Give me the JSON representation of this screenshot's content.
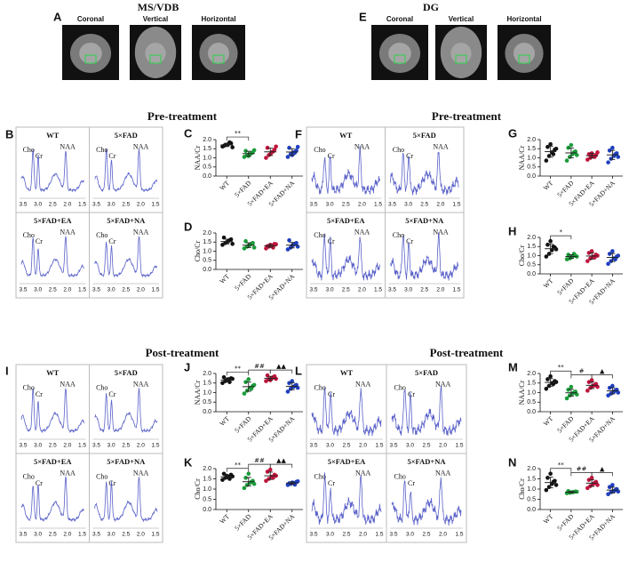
{
  "mri": [
    {
      "letter": "A",
      "title": "MS/VDB",
      "views": [
        "Coronal",
        "Vertical",
        "Horizontal"
      ]
    },
    {
      "letter": "E",
      "title": "DG",
      "views": [
        "Coronal",
        "Vertical",
        "Horizontal"
      ]
    }
  ],
  "sections": [
    "Pre-treatment",
    "Pre-treatment",
    "Post-treatment",
    "Post-treatment"
  ],
  "spectra": [
    {
      "letter": "B",
      "axis": [
        "3.5",
        "3.0",
        "2.5",
        "2.0",
        "1.5"
      ],
      "cells": [
        {
          "group": "WT",
          "peaks": [
            "Cho",
            "Cr",
            "NAA"
          ]
        },
        {
          "group": "5×FAD",
          "peaks": [
            "Cho",
            "Cr",
            "NAA"
          ]
        },
        {
          "group": "5×FAD+EA",
          "peaks": [
            "Cho",
            "Cr",
            "NAA"
          ]
        },
        {
          "group": "5×FAD+NA",
          "peaks": [
            "Cho",
            "Cr",
            "NAA"
          ]
        }
      ]
    },
    {
      "letter": "F",
      "axis": [
        "3.5",
        "3.0",
        "2.5",
        "2.0",
        "1.5"
      ],
      "cells": [
        {
          "group": "WT",
          "peaks": [
            "Cho",
            "Cr",
            "NAA"
          ]
        },
        {
          "group": "5×FAD",
          "peaks": [
            "Cho",
            "Cr",
            "NAA"
          ]
        },
        {
          "group": "5×FAD+EA",
          "peaks": [
            "Cho",
            "Cr",
            "NAA"
          ]
        },
        {
          "group": "5×FAD+NA",
          "peaks": [
            "Cho",
            "Cr",
            "NAA"
          ]
        }
      ]
    },
    {
      "letter": "I",
      "axis": [
        "3.5",
        "3.0",
        "2.5",
        "2.0",
        "1.5"
      ],
      "cells": [
        {
          "group": "WT",
          "peaks": [
            "Cho",
            "Cr",
            "NAA"
          ]
        },
        {
          "group": "5×FAD",
          "peaks": [
            "Cho",
            "Cr",
            "NAA"
          ]
        },
        {
          "group": "5×FAD+EA",
          "peaks": [
            "Cho",
            "Cr",
            "NAA"
          ]
        },
        {
          "group": "5×FAD+NA",
          "peaks": [
            "Cho",
            "Cr",
            "NAA"
          ]
        }
      ]
    },
    {
      "letter": "L",
      "axis": [
        "3.5",
        "3.0",
        "2.5",
        "2.0",
        "1.5"
      ],
      "cells": [
        {
          "group": "WT",
          "peaks": [
            "Cho",
            "Cr",
            "NAA"
          ]
        },
        {
          "group": "5×FAD",
          "peaks": [
            "Cho",
            "Cr",
            "NAA"
          ]
        },
        {
          "group": "5×FAD+EA",
          "peaks": [
            "Cho",
            "Cr",
            "NAA"
          ]
        },
        {
          "group": "5×FAD+NA",
          "peaks": [
            "Cho",
            "Cr",
            "NAA"
          ]
        }
      ]
    }
  ],
  "chart_data": [
    {
      "type": "strip",
      "letter": "C",
      "ylabel": "NAA/Cr",
      "categories": [
        "WT",
        "5×FAD",
        "5×FAD+EA",
        "5×FAD+NA"
      ],
      "colors": [
        "#111111",
        "#1a9c3a",
        "#c0143c",
        "#1f3fbf"
      ],
      "points": [
        [
          1.62,
          1.7,
          1.75,
          1.8,
          1.66,
          1.72,
          1.85,
          1.58
        ],
        [
          1.05,
          1.15,
          1.22,
          1.3,
          1.38,
          1.1,
          1.25,
          1.42
        ],
        [
          1.0,
          1.15,
          1.3,
          1.45,
          1.55,
          1.2,
          1.35,
          1.62
        ],
        [
          1.05,
          1.2,
          1.3,
          1.4,
          1.55,
          1.15,
          1.28,
          1.6
        ]
      ],
      "mean": [
        1.71,
        1.23,
        1.33,
        1.32
      ],
      "sd": [
        0.09,
        0.13,
        0.2,
        0.18
      ],
      "ylim": [
        0,
        2
      ],
      "yticks": [
        {
          "value": 0,
          "label": "0.0"
        },
        {
          "value": 0.5,
          "label": "0.5"
        },
        {
          "value": 1,
          "label": "1.0"
        },
        {
          "value": 1.5,
          "label": "1.5"
        },
        {
          "value": 2,
          "label": "2.0"
        }
      ],
      "significance": [
        "**"
      ]
    },
    {
      "type": "strip",
      "letter": "D",
      "ylabel": "Cho/Cr",
      "categories": [
        "WT",
        "5×FAD",
        "5×FAD+EA",
        "5×FAD+NA"
      ],
      "colors": [
        "#111111",
        "#1a9c3a",
        "#c0143c",
        "#1f3fbf"
      ],
      "points": [
        [
          1.35,
          1.45,
          1.55,
          1.65,
          1.75,
          1.5,
          1.6,
          1.4
        ],
        [
          1.15,
          1.25,
          1.35,
          1.45,
          1.55,
          1.3,
          1.4,
          1.2
        ],
        [
          1.15,
          1.25,
          1.32,
          1.4,
          1.28,
          1.35,
          1.2,
          1.38
        ],
        [
          1.1,
          1.2,
          1.35,
          1.45,
          1.6,
          1.3,
          1.4,
          1.25
        ]
      ],
      "mean": [
        1.53,
        1.33,
        1.29,
        1.33
      ],
      "sd": [
        0.13,
        0.13,
        0.08,
        0.15
      ],
      "ylim": [
        0,
        2
      ],
      "yticks": [
        {
          "value": 0,
          "label": "0.0"
        },
        {
          "value": 0.5,
          "label": "0.5"
        },
        {
          "value": 1,
          "label": "1.0"
        },
        {
          "value": 1.5,
          "label": "1.5"
        },
        {
          "value": 2,
          "label": "2.0"
        }
      ],
      "significance": []
    },
    {
      "type": "strip",
      "letter": "G",
      "ylabel": "NAA/Cr",
      "categories": [
        "WT",
        "5×FAD",
        "5×FAD+EA",
        "5×FAD+NA"
      ],
      "colors": [
        "#111111",
        "#1a9c3a",
        "#c0143c",
        "#1f3fbf"
      ],
      "points": [
        [
          0.85,
          1.1,
          1.3,
          1.45,
          1.6,
          1.75,
          1.2,
          1.5
        ],
        [
          0.85,
          1.05,
          1.2,
          1.35,
          1.55,
          1.7,
          1.3,
          1.15
        ],
        [
          0.9,
          1.0,
          1.1,
          1.15,
          1.2,
          1.25,
          1.05,
          1.3
        ],
        [
          0.75,
          0.95,
          1.1,
          1.25,
          1.4,
          1.55,
          1.2,
          1.05
        ]
      ],
      "mean": [
        1.34,
        1.27,
        1.12,
        1.16
      ],
      "sd": [
        0.3,
        0.27,
        0.13,
        0.25
      ],
      "ylim": [
        0,
        2
      ],
      "yticks": [
        {
          "value": 0,
          "label": "0.0"
        },
        {
          "value": 0.5,
          "label": "0.5"
        },
        {
          "value": 1,
          "label": "1.0"
        },
        {
          "value": 1.5,
          "label": "1.5"
        },
        {
          "value": 2,
          "label": "2.0"
        }
      ],
      "significance": []
    },
    {
      "type": "strip",
      "letter": "H",
      "ylabel": "Cho/Cr",
      "categories": [
        "WT",
        "5×FAD",
        "5×FAD+EA",
        "5×FAD+NA"
      ],
      "colors": [
        "#111111",
        "#1a9c3a",
        "#c0143c",
        "#1f3fbf"
      ],
      "points": [
        [
          0.95,
          1.1,
          1.3,
          1.45,
          1.6,
          1.8,
          1.5,
          1.35
        ],
        [
          0.8,
          0.85,
          0.95,
          1.0,
          1.05,
          0.9,
          1.1,
          0.95
        ],
        [
          0.7,
          0.85,
          0.95,
          1.05,
          1.15,
          1.25,
          0.9,
          1.0
        ],
        [
          0.55,
          0.7,
          0.85,
          0.95,
          1.1,
          1.25,
          0.8,
          1.0
        ]
      ],
      "mean": [
        1.38,
        0.95,
        0.98,
        0.9
      ],
      "sd": [
        0.27,
        0.1,
        0.17,
        0.22
      ],
      "ylim": [
        0,
        2
      ],
      "yticks": [
        {
          "value": 0,
          "label": "0.0"
        },
        {
          "value": 0.5,
          "label": "0.5"
        },
        {
          "value": 1,
          "label": "1.0"
        },
        {
          "value": 1.5,
          "label": "1.5"
        },
        {
          "value": 2,
          "label": "2.0"
        }
      ],
      "significance": [
        "*"
      ]
    },
    {
      "type": "strip",
      "letter": "J",
      "ylabel": "NAA/Cr",
      "categories": [
        "WT",
        "5×FAD",
        "5×FAD+EA",
        "5×FAD+NA"
      ],
      "colors": [
        "#111111",
        "#1a9c3a",
        "#c0143c",
        "#1f3fbf"
      ],
      "points": [
        [
          1.5,
          1.6,
          1.7,
          1.75,
          1.8,
          1.65,
          1.55,
          1.72
        ],
        [
          0.95,
          1.1,
          1.25,
          1.35,
          1.55,
          1.7,
          1.2,
          1.4
        ],
        [
          1.6,
          1.7,
          1.75,
          1.85,
          1.9,
          1.65,
          1.8,
          1.72
        ],
        [
          1.05,
          1.2,
          1.3,
          1.4,
          1.5,
          1.6,
          1.35,
          1.25
        ]
      ],
      "mean": [
        1.66,
        1.31,
        1.75,
        1.33
      ],
      "sd": [
        0.1,
        0.24,
        0.1,
        0.18
      ],
      "ylim": [
        0,
        2
      ],
      "yticks": [
        {
          "value": 0,
          "label": "0.0"
        },
        {
          "value": 0.5,
          "label": "0.5"
        },
        {
          "value": 1,
          "label": "1.0"
        },
        {
          "value": 1.5,
          "label": "1.5"
        },
        {
          "value": 2,
          "label": "2.0"
        }
      ],
      "significance": [
        "**",
        "##",
        "▲▲"
      ]
    },
    {
      "type": "strip",
      "letter": "K",
      "ylabel": "Cho/Cr",
      "categories": [
        "WT",
        "5×FAD",
        "5×FAD+EA",
        "5×FAD+NA"
      ],
      "colors": [
        "#111111",
        "#1a9c3a",
        "#c0143c",
        "#1f3fbf"
      ],
      "points": [
        [
          1.45,
          1.55,
          1.6,
          1.7,
          1.75,
          1.65,
          1.5,
          1.62
        ],
        [
          1.05,
          1.2,
          1.3,
          1.4,
          1.55,
          1.75,
          1.35,
          1.25
        ],
        [
          1.4,
          1.5,
          1.6,
          1.7,
          1.85,
          1.95,
          1.55,
          1.65
        ],
        [
          1.2,
          1.25,
          1.3,
          1.35,
          1.28,
          1.32,
          1.22,
          1.38
        ]
      ],
      "mean": [
        1.6,
        1.36,
        1.65,
        1.29
      ],
      "sd": [
        0.1,
        0.21,
        0.18,
        0.06
      ],
      "ylim": [
        0,
        2
      ],
      "yticks": [
        {
          "value": 0,
          "label": "0.0"
        },
        {
          "value": 0.5,
          "label": "0.5"
        },
        {
          "value": 1,
          "label": "1.0"
        },
        {
          "value": 1.5,
          "label": "1.5"
        },
        {
          "value": 2,
          "label": "2.0"
        }
      ],
      "significance": [
        "**",
        "##",
        "▲▲"
      ]
    },
    {
      "type": "strip",
      "letter": "M",
      "ylabel": "NAA/Cr",
      "categories": [
        "WT",
        "5×FAD",
        "5×FAD+EA",
        "5×FAD+NA"
      ],
      "colors": [
        "#111111",
        "#1a9c3a",
        "#c0143c",
        "#1f3fbf"
      ],
      "points": [
        [
          1.2,
          1.35,
          1.5,
          1.6,
          1.7,
          1.85,
          1.45,
          1.55
        ],
        [
          0.7,
          0.85,
          0.95,
          1.05,
          1.15,
          1.3,
          1.0,
          0.9
        ],
        [
          1.1,
          1.25,
          1.35,
          1.45,
          1.55,
          1.65,
          1.4,
          1.3
        ],
        [
          0.85,
          0.95,
          1.05,
          1.15,
          1.25,
          1.35,
          1.1,
          1.0
        ]
      ],
      "mean": [
        1.53,
        0.99,
        1.38,
        1.09
      ],
      "sd": [
        0.2,
        0.18,
        0.17,
        0.16
      ],
      "ylim": [
        0,
        2
      ],
      "yticks": [
        {
          "value": 0,
          "label": "0.0"
        },
        {
          "value": 0.5,
          "label": "0.5"
        },
        {
          "value": 1,
          "label": "1.0"
        },
        {
          "value": 1.5,
          "label": "1.5"
        },
        {
          "value": 2,
          "label": "2.0"
        }
      ],
      "significance": [
        "**",
        "#",
        "▲"
      ]
    },
    {
      "type": "strip",
      "letter": "N",
      "ylabel": "Cho/Cr",
      "categories": [
        "WT",
        "5×FAD",
        "5×FAD+EA",
        "5×FAD+NA"
      ],
      "colors": [
        "#111111",
        "#1a9c3a",
        "#c0143c",
        "#1f3fbf"
      ],
      "points": [
        [
          0.95,
          1.1,
          1.25,
          1.4,
          1.55,
          1.75,
          1.35,
          1.2
        ],
        [
          0.8,
          0.82,
          0.85,
          0.88,
          0.9,
          0.84,
          0.86,
          0.87
        ],
        [
          1.05,
          1.15,
          1.25,
          1.35,
          1.45,
          1.55,
          1.3,
          1.2
        ],
        [
          0.75,
          0.85,
          0.9,
          1.0,
          1.1,
          1.2,
          0.95,
          0.88
        ]
      ],
      "mean": [
        1.32,
        0.85,
        1.29,
        0.95
      ],
      "sd": [
        0.26,
        0.03,
        0.16,
        0.14
      ],
      "ylim": [
        0,
        2
      ],
      "yticks": [
        {
          "value": 0,
          "label": "0.0"
        },
        {
          "value": 0.5,
          "label": "0.5"
        },
        {
          "value": 1,
          "label": "1.0"
        },
        {
          "value": 1.5,
          "label": "1.5"
        },
        {
          "value": 2,
          "label": "2.0"
        }
      ],
      "significance": [
        "**",
        "##",
        "▲"
      ]
    }
  ]
}
